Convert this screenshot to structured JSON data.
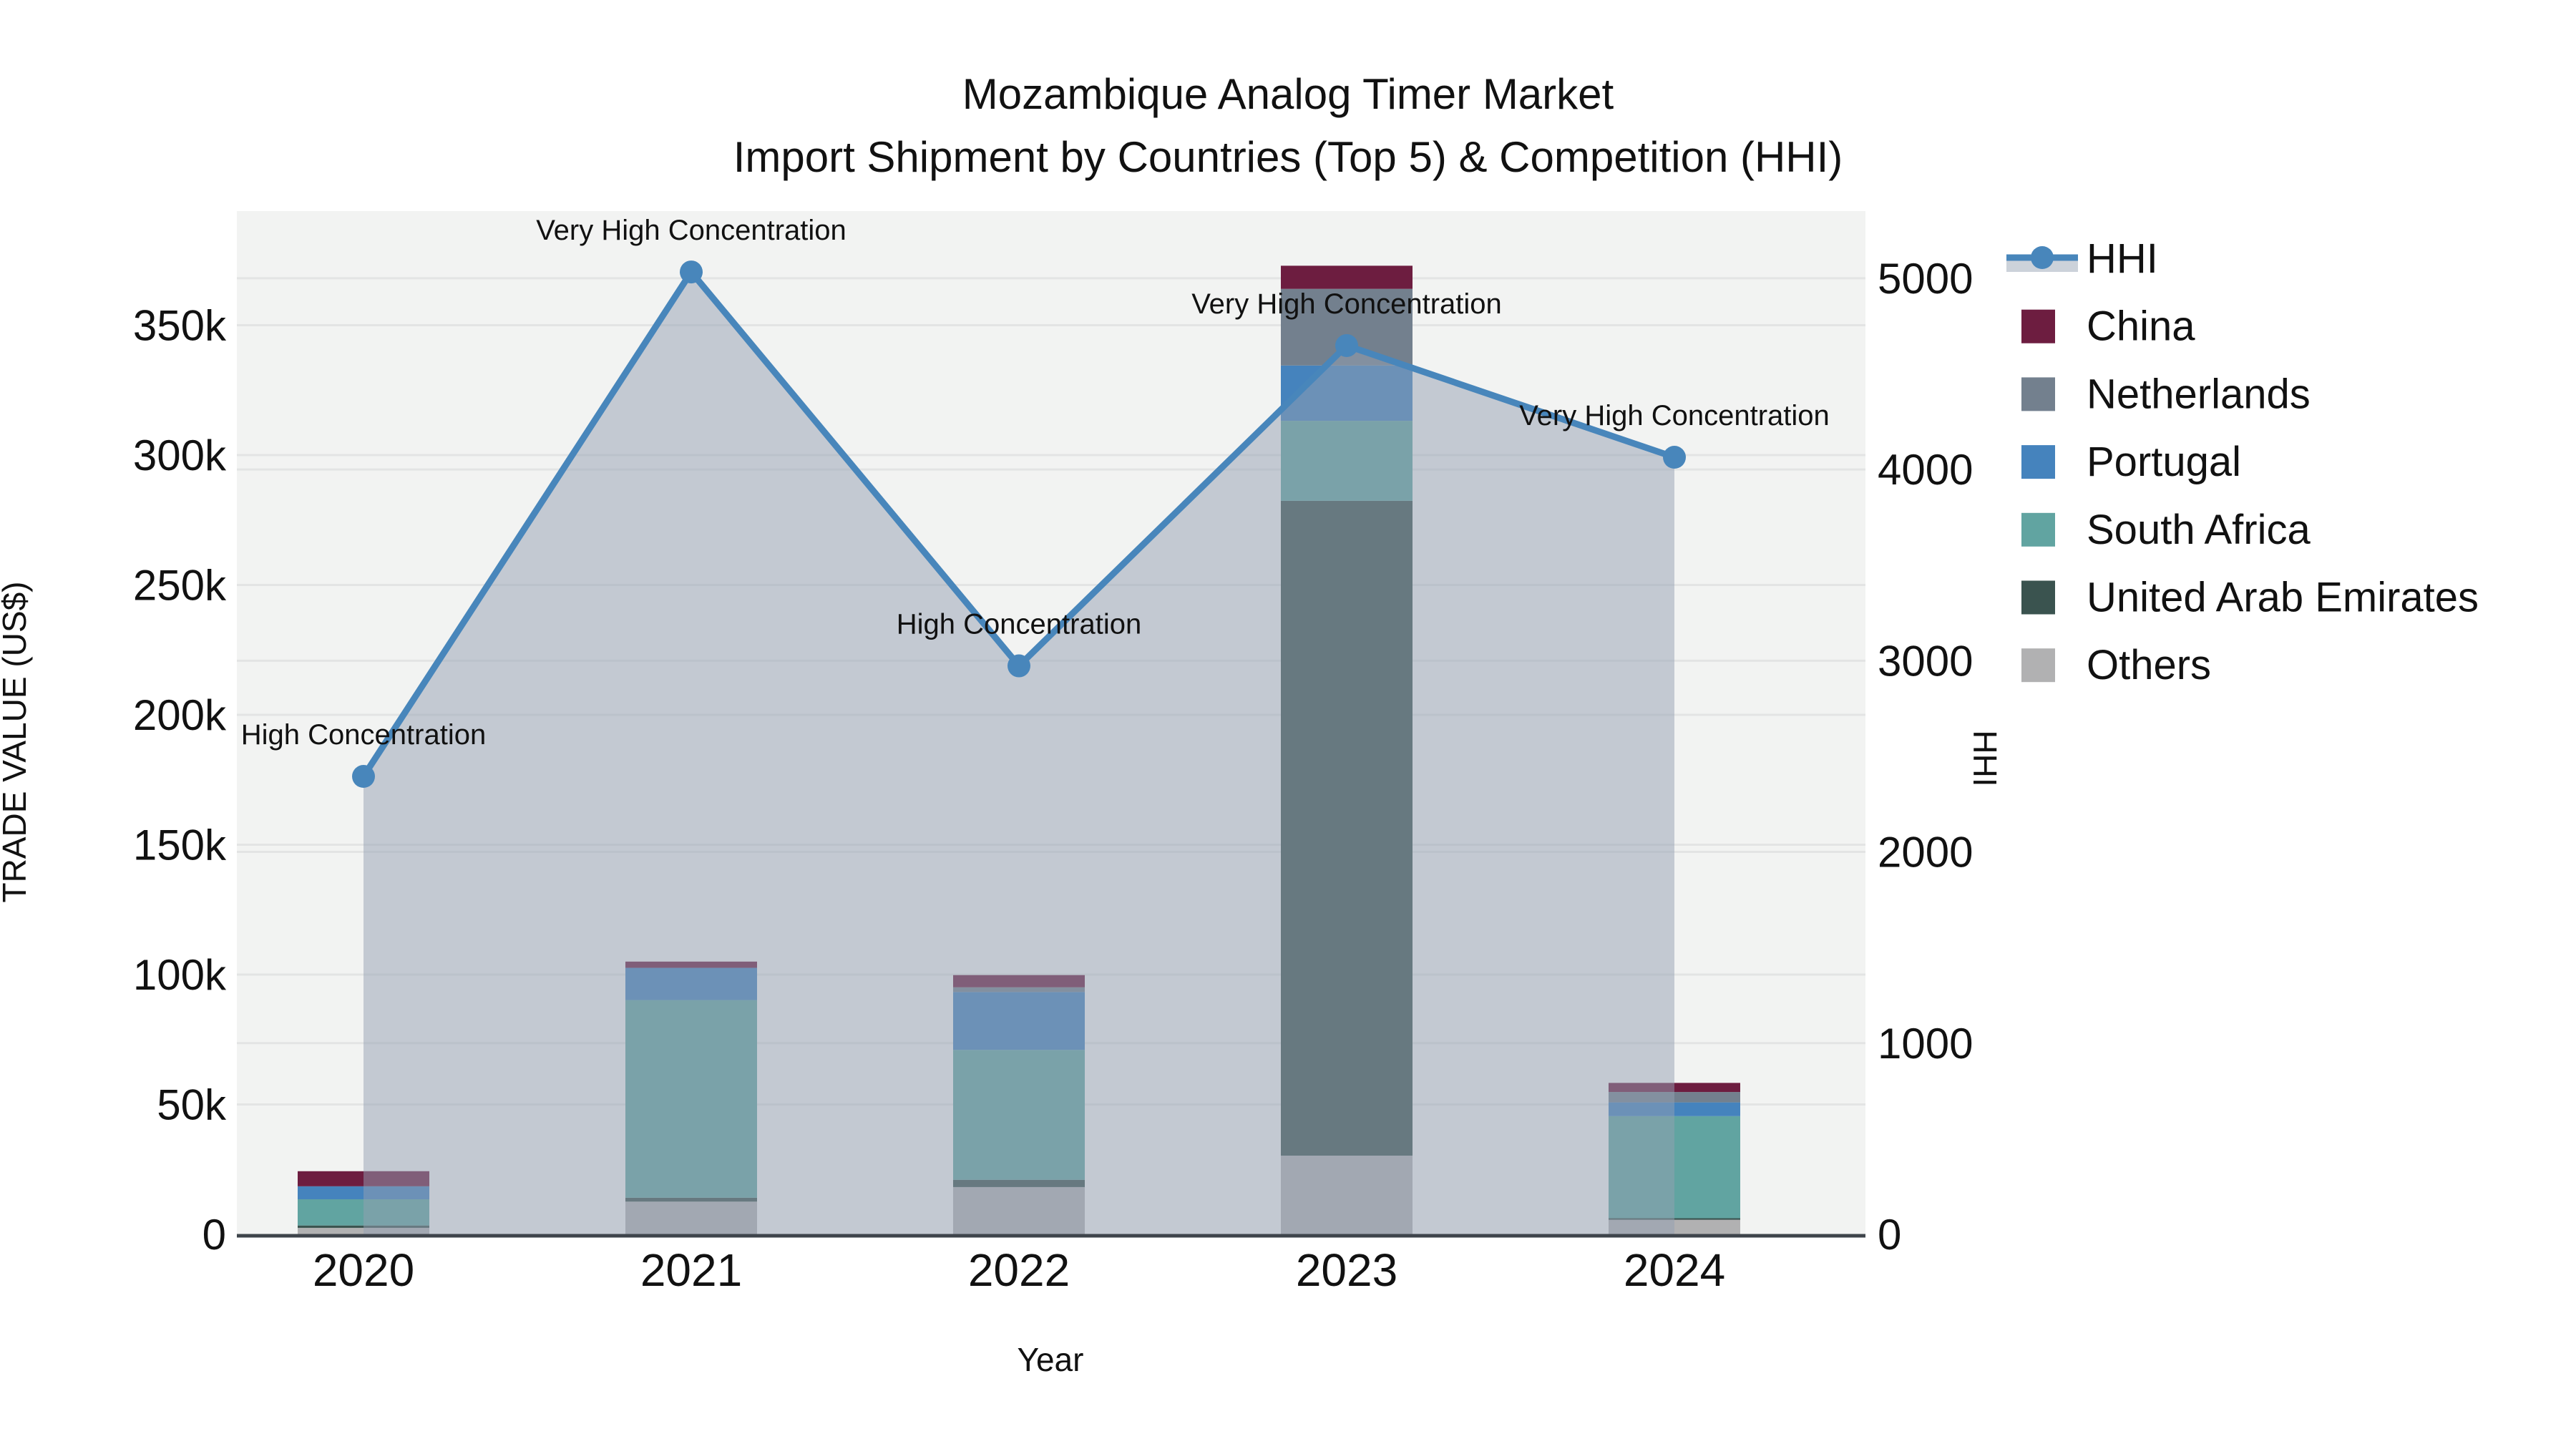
{
  "figure": {
    "title_line1": "Mozambique Analog Timer Market",
    "title_line2": "Import Shipment by Countries (Top 5) & Competition (HHI)"
  },
  "axes": {
    "x_title": "Year",
    "y_left_title": "TRADE VALUE (US$)",
    "y_right_title": "HHI"
  },
  "chart_data": {
    "type": "bar+line",
    "subtype": "stacked bars (left axis) with HHI line + filled area (right axis)",
    "categories": [
      "2020",
      "2021",
      "2022",
      "2023",
      "2024"
    ],
    "bar_stack_order_bottom_to_top": [
      "Others",
      "United Arab Emirates",
      "South Africa",
      "Portugal",
      "Netherlands",
      "China"
    ],
    "series": [
      {
        "name": "China",
        "color": "#6d1d40",
        "values": [
          5800,
          2400,
          4700,
          8900,
          3500
        ]
      },
      {
        "name": "Netherlands",
        "color": "#73808e",
        "values": [
          0,
          0,
          1800,
          29500,
          4000
        ]
      },
      {
        "name": "Portugal",
        "color": "#4583bd",
        "values": [
          5000,
          12400,
          22300,
          21300,
          5300
        ]
      },
      {
        "name": "South Africa",
        "color": "#61a4a1",
        "values": [
          10100,
          76100,
          50000,
          30800,
          39300
        ]
      },
      {
        "name": "United Arab Emirates",
        "color": "#3a534f",
        "values": [
          900,
          1500,
          2800,
          252100,
          600
        ]
      },
      {
        "name": "Others",
        "color": "#b1b1b2",
        "values": [
          2500,
          12600,
          18200,
          30300,
          5600
        ]
      }
    ],
    "bar_totals": [
      24300,
      105000,
      99800,
      372900,
      58300
    ],
    "line": {
      "name": "HHI",
      "axis": "right",
      "color": "#4886bb",
      "fill_color": "rgba(147,159,177,0.5)",
      "values": [
        2395,
        5033,
        2973,
        4648,
        4064
      ]
    },
    "annotations": [
      {
        "category": "2020",
        "text": "High Concentration"
      },
      {
        "category": "2021",
        "text": "Very High Concentration"
      },
      {
        "category": "2022",
        "text": "High Concentration"
      },
      {
        "category": "2023",
        "text": "Very High Concentration"
      },
      {
        "category": "2024",
        "text": "Very High Concentration"
      }
    ],
    "y_left": {
      "title": "TRADE VALUE (US$)",
      "tick_labels": [
        "0",
        "50k",
        "100k",
        "150k",
        "200k",
        "250k",
        "300k",
        "350k"
      ],
      "tick_values": [
        0,
        50000,
        100000,
        150000,
        200000,
        250000,
        300000,
        350000
      ],
      "range": [
        0,
        394000
      ]
    },
    "y_right": {
      "title": "HHI",
      "tick_labels": [
        "0",
        "1000",
        "2000",
        "3000",
        "4000",
        "5000"
      ],
      "tick_values": [
        0,
        1000,
        2000,
        3000,
        4000,
        5000
      ],
      "range": [
        0,
        5350
      ]
    },
    "x": {
      "title": "Year"
    },
    "legend_position": "right",
    "grid": true,
    "plot_bg": "#f2f3f2",
    "grid_color": "#e3e4e4",
    "axis_line_color": "#3e444b",
    "legend": [
      {
        "label": "HHI",
        "type": "line",
        "color": "#4886bb",
        "fill": "#ccd2da"
      },
      {
        "label": "China",
        "type": "bar",
        "color": "#6d1d40"
      },
      {
        "label": "Netherlands",
        "type": "bar",
        "color": "#73808e"
      },
      {
        "label": "Portugal",
        "type": "bar",
        "color": "#4583bd"
      },
      {
        "label": "South Africa",
        "type": "bar",
        "color": "#61a4a1"
      },
      {
        "label": "United Arab Emirates",
        "type": "bar",
        "color": "#3a534f"
      },
      {
        "label": "Others",
        "type": "bar",
        "color": "#b1b1b2"
      }
    ]
  }
}
